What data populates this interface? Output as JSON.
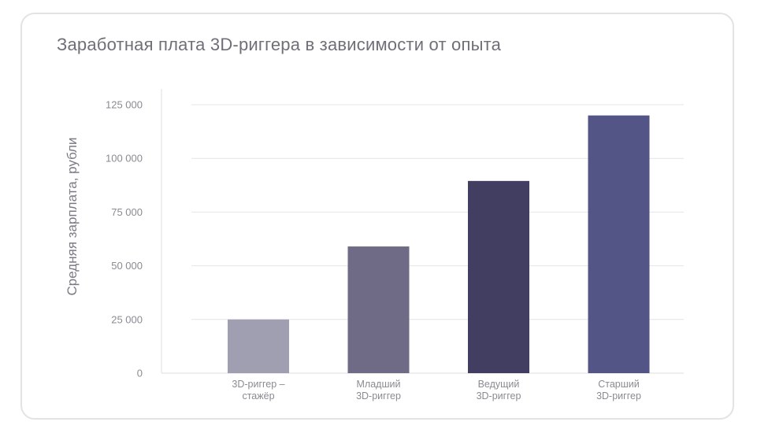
{
  "chart_data": {
    "type": "bar",
    "title": "Заработная плата 3D-риггера в зависимости от опыта",
    "xlabel": "",
    "ylabel": "Средняя зарплата, рубли",
    "categories": [
      [
        "3D-риггер –",
        "стажёр"
      ],
      [
        "Младший",
        "3D-риггер"
      ],
      [
        "Ведущий",
        "3D-риггер"
      ],
      [
        "Старший",
        "3D-риггер"
      ]
    ],
    "values": [
      25000,
      59000,
      89500,
      120000
    ],
    "colors": [
      "#a09fb2",
      "#6f6b87",
      "#413e61",
      "#535586"
    ],
    "ylim": [
      0,
      125000
    ],
    "yticks": [
      0,
      25000,
      50000,
      75000,
      100000,
      125000
    ],
    "ytick_labels": [
      "0",
      "25 000",
      "50 000",
      "75 000",
      "100 000",
      "125 000"
    ],
    "grid": true,
    "legend": "none"
  }
}
